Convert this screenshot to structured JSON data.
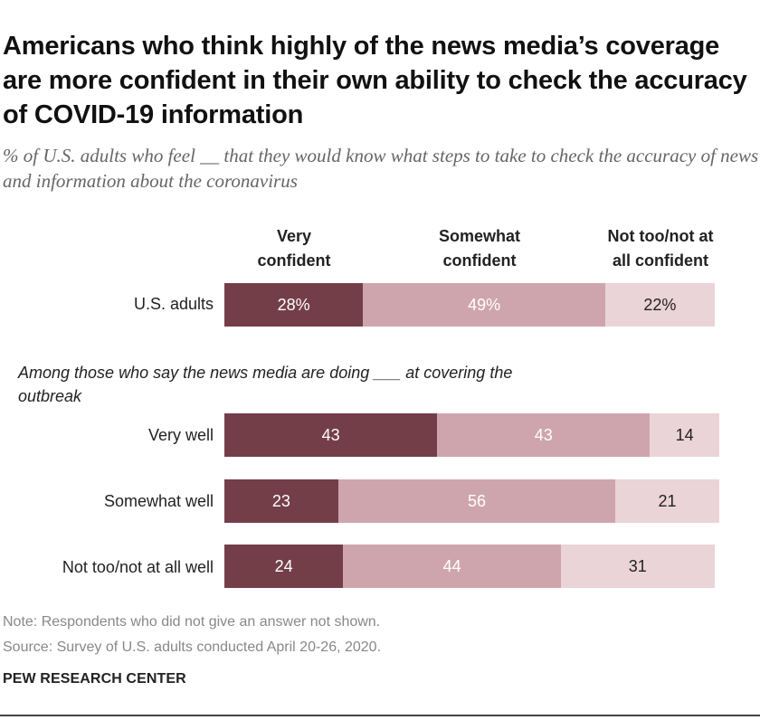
{
  "title": "Americans who think highly of the news media’s coverage are more confident in their own ability to check the accuracy of COVID-19 information",
  "subtitle": "% of U.S. adults who feel __ that they would know what steps to take to check the accuracy of news and information about the coronavirus",
  "group_note": "Among those who say the news media are doing ___ at covering the outbreak",
  "note": "Note: Respondents who did not give an answer not shown.",
  "source": "Source: Survey of U.S. adults conducted April 20-26, 2020.",
  "brand": "PEW RESEARCH CENTER",
  "colors": {
    "very": "#743e49",
    "somewhat": "#cfa5ad",
    "not": "#ead4d8",
    "label_light": "#ffffff",
    "label_dark": "#222222"
  },
  "chart_data": {
    "type": "bar",
    "orientation": "horizontal",
    "stacked": true,
    "columns": [
      "Very confident",
      "Somewhat confident",
      "Not too/not at all confident"
    ],
    "column_heads": [
      [
        "Very",
        "confident"
      ],
      [
        "Somewhat",
        "confident"
      ],
      [
        "Not too/not at",
        "all confident"
      ]
    ],
    "categories": [
      "U.S. adults",
      "Very well",
      "Somewhat well",
      "Not too/not at all well"
    ],
    "series": [
      {
        "name": "Very confident",
        "values": [
          28,
          43,
          23,
          24
        ],
        "labels": [
          "28%",
          "43",
          "23",
          "24"
        ]
      },
      {
        "name": "Somewhat confident",
        "values": [
          49,
          43,
          56,
          44
        ],
        "labels": [
          "49%",
          "43",
          "56",
          "44"
        ]
      },
      {
        "name": "Not too/not at all confident",
        "values": [
          22,
          14,
          21,
          31
        ],
        "labels": [
          "22%",
          "14",
          "21",
          "31"
        ]
      }
    ],
    "xlim": [
      0,
      100
    ]
  }
}
